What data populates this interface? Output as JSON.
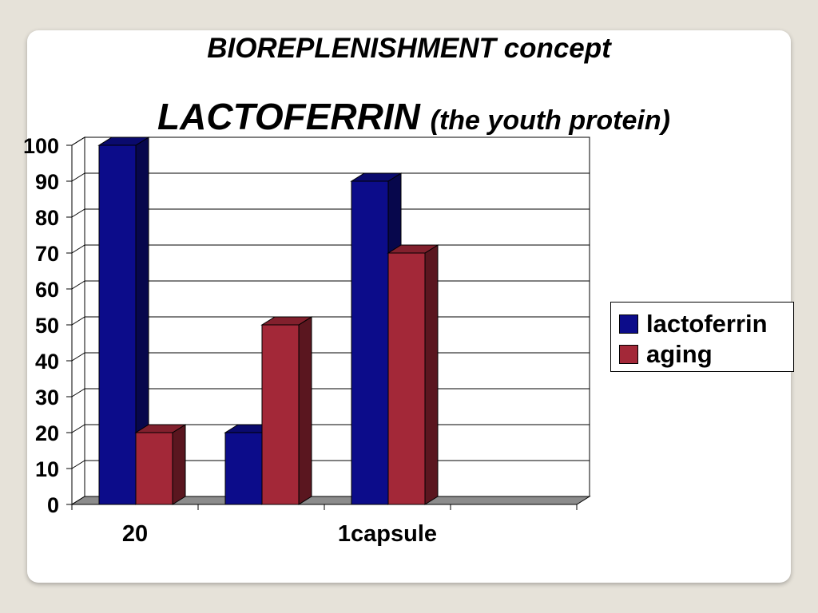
{
  "slide": {
    "title": "BIOREPLENISHMENT  concept",
    "subtitle_main": "LACTOFERRIN",
    "subtitle_paren": "(the youth protein)"
  },
  "chart_data": {
    "type": "bar",
    "title": "",
    "xlabel": "",
    "ylabel": "",
    "ylim": [
      0,
      100
    ],
    "yticks": [
      0,
      10,
      20,
      30,
      40,
      50,
      60,
      70,
      80,
      90,
      100
    ],
    "ytick_labels": [
      "0",
      "10",
      "20",
      "30",
      "40",
      "50",
      "60",
      "70",
      "80",
      "90",
      "100"
    ],
    "categories": [
      "20",
      "",
      "1capsule",
      ""
    ],
    "grid": true,
    "legend_position": "right",
    "series": [
      {
        "name": "lactoferrin",
        "color": "#0c0c8a",
        "values": [
          100,
          20,
          90,
          null
        ]
      },
      {
        "name": "aging",
        "color": "#a32838",
        "values": [
          20,
          50,
          70,
          null
        ]
      }
    ]
  }
}
